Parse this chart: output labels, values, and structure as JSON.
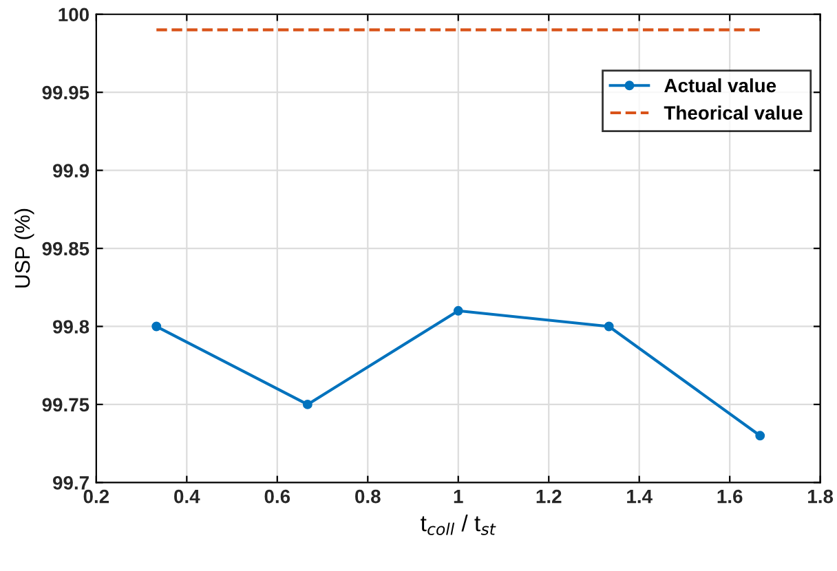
{
  "chart_data": {
    "type": "line",
    "xlabel": "t$_{coll}$ / t$_{st}$",
    "ylabel": "USP (%)",
    "series": [
      {
        "name": "Actual value",
        "color": "#0072bd",
        "x": [
          0.333,
          0.667,
          1,
          1.333,
          1.667
        ],
        "values": [
          99.8,
          99.75,
          99.81,
          99.8,
          99.73
        ],
        "marker": "circle",
        "line_style": "solid"
      },
      {
        "name": "Theorical value",
        "color": "#d95319",
        "x": [
          0.333,
          0.667,
          1,
          1.333,
          1.667
        ],
        "values": [
          99.99,
          99.99,
          99.99,
          99.99,
          99.99
        ],
        "marker": "none",
        "line_style": "dashed"
      }
    ],
    "xlim": [
      0.2,
      1.8
    ],
    "xticks": [
      0.2,
      0.4,
      0.6,
      0.8,
      1,
      1.2,
      1.4,
      1.6,
      1.8
    ],
    "ylim": [
      99.7,
      100
    ],
    "yticks": [
      99.7,
      99.75,
      99.8,
      99.85,
      99.9,
      99.95,
      100
    ],
    "grid": true,
    "legend": "top right"
  }
}
